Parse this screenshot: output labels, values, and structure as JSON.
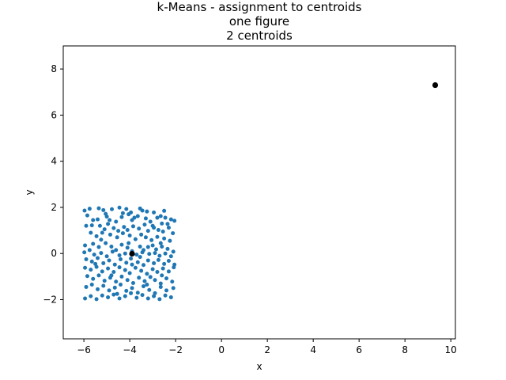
{
  "chart_data": {
    "type": "scatter",
    "title_lines": [
      "k-Means - assignment to centroids",
      "one figure",
      "2 centroids"
    ],
    "xlabel": "x",
    "ylabel": "y",
    "xlim": [
      -6.9,
      10.2
    ],
    "ylim": [
      -3.7,
      9.0
    ],
    "xticks": [
      -6,
      -4,
      -2,
      0,
      2,
      4,
      6,
      8,
      10
    ],
    "yticks": [
      -2,
      0,
      2,
      4,
      6,
      8
    ],
    "grid": false,
    "colors": {
      "points": "#1f77b4",
      "centroids": "#000000"
    },
    "series": [
      {
        "role": "points",
        "points": [
          [
            -5.97,
            1.86
          ],
          [
            -5.75,
            1.94
          ],
          [
            -5.35,
            1.96
          ],
          [
            -5.15,
            1.88
          ],
          [
            -4.78,
            1.92
          ],
          [
            -4.45,
            1.99
          ],
          [
            -4.15,
            1.93
          ],
          [
            -3.95,
            1.78
          ],
          [
            -3.55,
            1.95
          ],
          [
            -3.45,
            1.86
          ],
          [
            -3.25,
            1.82
          ],
          [
            -2.95,
            1.78
          ],
          [
            -2.65,
            1.62
          ],
          [
            -2.45,
            1.55
          ],
          [
            -2.2,
            1.48
          ],
          [
            -5.85,
            1.65
          ],
          [
            -5.6,
            1.45
          ],
          [
            -5.4,
            1.48
          ],
          [
            -5.05,
            1.72
          ],
          [
            -4.88,
            1.45
          ],
          [
            -4.6,
            1.38
          ],
          [
            -4.35,
            1.58
          ],
          [
            -4.05,
            1.7
          ],
          [
            -3.9,
            1.45
          ],
          [
            -3.65,
            1.62
          ],
          [
            -3.3,
            1.52
          ],
          [
            -3.1,
            1.38
          ],
          [
            -2.8,
            1.55
          ],
          [
            -2.6,
            1.3
          ],
          [
            -2.35,
            1.28
          ],
          [
            -2.05,
            1.42
          ],
          [
            -5.9,
            1.2
          ],
          [
            -5.65,
            1.22
          ],
          [
            -5.3,
            1.2
          ],
          [
            -5.1,
            1.05
          ],
          [
            -4.95,
            1.28
          ],
          [
            -4.7,
            1.1
          ],
          [
            -4.5,
            0.98
          ],
          [
            -4.25,
            1.15
          ],
          [
            -4.1,
            1.02
          ],
          [
            -3.85,
            1.18
          ],
          [
            -3.6,
            1.08
          ],
          [
            -3.35,
            1.25
          ],
          [
            -3.2,
            0.98
          ],
          [
            -2.95,
            1.12
          ],
          [
            -2.75,
            1.02
          ],
          [
            -2.55,
            0.95
          ],
          [
            -2.3,
            1.12
          ],
          [
            -2.12,
            0.88
          ],
          [
            -5.7,
            0.9
          ],
          [
            -5.45,
            0.75
          ],
          [
            -5.2,
            0.9
          ],
          [
            -4.85,
            0.82
          ],
          [
            -4.55,
            0.7
          ],
          [
            -4.3,
            0.88
          ],
          [
            -4.0,
            0.78
          ],
          [
            -3.75,
            0.62
          ],
          [
            -3.5,
            0.82
          ],
          [
            -3.3,
            0.7
          ],
          [
            -3.05,
            0.58
          ],
          [
            -2.8,
            0.72
          ],
          [
            -2.5,
            0.65
          ],
          [
            -2.25,
            0.55
          ],
          [
            -5.95,
            0.35
          ],
          [
            -5.6,
            0.42
          ],
          [
            -5.35,
            0.28
          ],
          [
            -5.05,
            0.45
          ],
          [
            -4.8,
            0.3
          ],
          [
            -4.6,
            0.15
          ],
          [
            -4.35,
            0.38
          ],
          [
            -4.1,
            0.25
          ],
          [
            -3.9,
            0.1
          ],
          [
            -3.55,
            0.3
          ],
          [
            -3.4,
            0.15
          ],
          [
            -3.2,
            0.28
          ],
          [
            -3.0,
            0.35
          ],
          [
            -2.85,
            0.18
          ],
          [
            -2.6,
            0.3
          ],
          [
            -2.35,
            0.2
          ],
          [
            -2.1,
            0.08
          ],
          [
            -5.98,
            0.05
          ],
          [
            -5.75,
            0.15
          ],
          [
            -5.55,
            -0.05
          ],
          [
            -5.25,
            0.02
          ],
          [
            -5.0,
            -0.12
          ],
          [
            -4.75,
            0.08
          ],
          [
            -4.45,
            -0.08
          ],
          [
            -4.2,
            0.0
          ],
          [
            -3.7,
            -0.05
          ],
          [
            -3.45,
            0.05
          ],
          [
            -3.15,
            -0.02
          ],
          [
            -2.9,
            0.02
          ],
          [
            -2.7,
            -0.1
          ],
          [
            -2.45,
            0.0
          ],
          [
            -2.2,
            -0.12
          ],
          [
            -5.9,
            -0.25
          ],
          [
            -5.65,
            -0.35
          ],
          [
            -5.4,
            -0.2
          ],
          [
            -5.15,
            -0.42
          ],
          [
            -4.9,
            -0.3
          ],
          [
            -4.65,
            -0.48
          ],
          [
            -4.4,
            -0.25
          ],
          [
            -4.15,
            -0.4
          ],
          [
            -3.95,
            -0.22
          ],
          [
            -3.65,
            -0.38
          ],
          [
            -3.4,
            -0.5
          ],
          [
            -3.2,
            -0.3
          ],
          [
            -2.95,
            -0.42
          ],
          [
            -2.75,
            -0.28
          ],
          [
            -2.5,
            -0.45
          ],
          [
            -2.3,
            -0.32
          ],
          [
            -2.05,
            -0.48
          ],
          [
            -5.95,
            -0.62
          ],
          [
            -5.7,
            -0.7
          ],
          [
            -5.45,
            -0.58
          ],
          [
            -5.2,
            -0.78
          ],
          [
            -4.95,
            -0.65
          ],
          [
            -4.7,
            -0.8
          ],
          [
            -4.45,
            -0.6
          ],
          [
            -4.2,
            -0.72
          ],
          [
            -4.0,
            -0.85
          ],
          [
            -3.75,
            -0.62
          ],
          [
            -3.5,
            -0.75
          ],
          [
            -3.25,
            -0.88
          ],
          [
            -3.0,
            -0.68
          ],
          [
            -2.8,
            -0.8
          ],
          [
            -2.55,
            -0.65
          ],
          [
            -2.3,
            -0.78
          ],
          [
            -2.08,
            -0.6
          ],
          [
            -5.85,
            -0.98
          ],
          [
            -5.6,
            -1.1
          ],
          [
            -5.35,
            -0.95
          ],
          [
            -5.1,
            -1.18
          ],
          [
            -4.85,
            -1.05
          ],
          [
            -4.6,
            -1.22
          ],
          [
            -4.35,
            -1.0
          ],
          [
            -4.1,
            -1.15
          ],
          [
            -3.85,
            -1.28
          ],
          [
            -3.6,
            -1.05
          ],
          [
            -3.35,
            -1.2
          ],
          [
            -3.1,
            -1.02
          ],
          [
            -2.9,
            -1.15
          ],
          [
            -2.65,
            -1.3
          ],
          [
            -2.4,
            -1.08
          ],
          [
            -2.15,
            -1.22
          ],
          [
            -5.9,
            -1.45
          ],
          [
            -5.65,
            -1.35
          ],
          [
            -5.4,
            -1.55
          ],
          [
            -5.15,
            -1.4
          ],
          [
            -4.9,
            -1.6
          ],
          [
            -4.65,
            -1.48
          ],
          [
            -4.4,
            -1.35
          ],
          [
            -4.15,
            -1.62
          ],
          [
            -3.9,
            -1.5
          ],
          [
            -3.65,
            -1.7
          ],
          [
            -3.4,
            -1.42
          ],
          [
            -3.15,
            -1.58
          ],
          [
            -2.9,
            -1.72
          ],
          [
            -2.65,
            -1.45
          ],
          [
            -2.4,
            -1.6
          ],
          [
            -2.1,
            -1.5
          ],
          [
            -5.95,
            -1.95
          ],
          [
            -5.7,
            -1.85
          ],
          [
            -5.45,
            -1.98
          ],
          [
            -5.2,
            -1.82
          ],
          [
            -4.95,
            -1.9
          ],
          [
            -4.7,
            -1.78
          ],
          [
            -4.45,
            -1.95
          ],
          [
            -4.2,
            -1.85
          ],
          [
            -3.95,
            -1.72
          ],
          [
            -3.7,
            -1.92
          ],
          [
            -3.45,
            -1.8
          ],
          [
            -3.2,
            -1.95
          ],
          [
            -2.95,
            -1.85
          ],
          [
            -2.7,
            -1.98
          ],
          [
            -2.45,
            -1.82
          ],
          [
            -2.2,
            -1.9
          ],
          [
            -4.3,
            1.75
          ],
          [
            -3.8,
            1.55
          ],
          [
            -3.0,
            1.2
          ],
          [
            -5.25,
            0.6
          ],
          [
            -4.05,
            0.45
          ],
          [
            -2.65,
            0.45
          ],
          [
            -5.5,
            -0.45
          ],
          [
            -3.55,
            -0.15
          ],
          [
            -2.6,
            -0.95
          ],
          [
            -4.55,
            -1.75
          ],
          [
            -3.25,
            -1.35
          ],
          [
            -5.0,
            1.6
          ],
          [
            -2.5,
            1.85
          ],
          [
            -3.9,
            -0.48
          ],
          [
            -4.8,
            -0.95
          ]
        ]
      },
      {
        "role": "centroids",
        "points": [
          [
            -3.9,
            -0.01
          ],
          [
            9.32,
            7.3
          ]
        ]
      }
    ]
  }
}
